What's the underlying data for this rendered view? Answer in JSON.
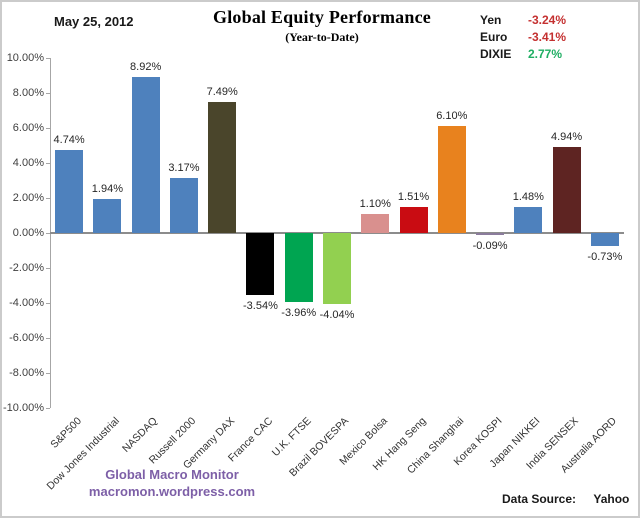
{
  "header": {
    "date": "May 25, 2012",
    "title": "Global Equity Performance",
    "subtitle": "(Year-to-Date)",
    "currency_legend": [
      {
        "label": "Yen",
        "value": "-3.24%",
        "value_color": "#C43030"
      },
      {
        "label": "Euro",
        "value": "-3.41%",
        "value_color": "#C43030"
      },
      {
        "label": "DIXIE",
        "value": "2.77%",
        "value_color": "#1FAE63"
      }
    ]
  },
  "chart_data": {
    "type": "bar",
    "title": "Global Equity Performance",
    "subtitle": "(Year-to-Date)",
    "xlabel": "",
    "ylabel": "",
    "ylim": [
      -10,
      10
    ],
    "ytick_step": 2,
    "ytick_labels": [
      "10.00%",
      "8.00%",
      "6.00%",
      "4.00%",
      "2.00%",
      "0.00%",
      "-2.00%",
      "-4.00%",
      "-6.00%",
      "-8.00%",
      "-10.00%"
    ],
    "grid": false,
    "legend_position": "none",
    "value_labels_shown": true,
    "categories": [
      "S&P500",
      "Dow Jones Industrial",
      "NASDAQ",
      "Russell 2000",
      "Germany DAX",
      "France CAC",
      "U.K. FTSE",
      "Brazil BOVESPA",
      "Mexico Bolsa",
      "HK Hang Seng",
      "China Shanghai",
      "Korea KOSPI",
      "Japan NIKKEI",
      "India SENSEX",
      "Australia AORD"
    ],
    "values": [
      4.74,
      1.94,
      8.92,
      3.17,
      7.49,
      -3.54,
      -3.96,
      -4.04,
      1.1,
      1.51,
      6.1,
      -0.09,
      1.48,
      4.94,
      -0.73
    ],
    "value_labels": [
      "4.74%",
      "1.94%",
      "8.92%",
      "3.17%",
      "7.49%",
      "-3.54%",
      "-3.96%",
      "-4.04%",
      "1.10%",
      "1.51%",
      "6.10%",
      "-0.09%",
      "1.48%",
      "4.94%",
      "-0.73%"
    ],
    "bar_colors": [
      "#4E81BD",
      "#4E81BD",
      "#4E81BD",
      "#4E81BD",
      "#4A452B",
      "#000000",
      "#00A551",
      "#92D050",
      "#D9908E",
      "#C90C12",
      "#E8821E",
      "#8B7C9C",
      "#4E81BD",
      "#5E2422",
      "#4E81BD"
    ],
    "axis_color": "#A6A6A6",
    "zero_line_color": "#8C8C8C"
  },
  "footer": {
    "site_line1": "Global Macro Monitor",
    "site_line2": "macromon.wordpress.com",
    "site_color": "#7D5FA7",
    "source_label": "Data Source:",
    "source_value": "Yahoo"
  }
}
